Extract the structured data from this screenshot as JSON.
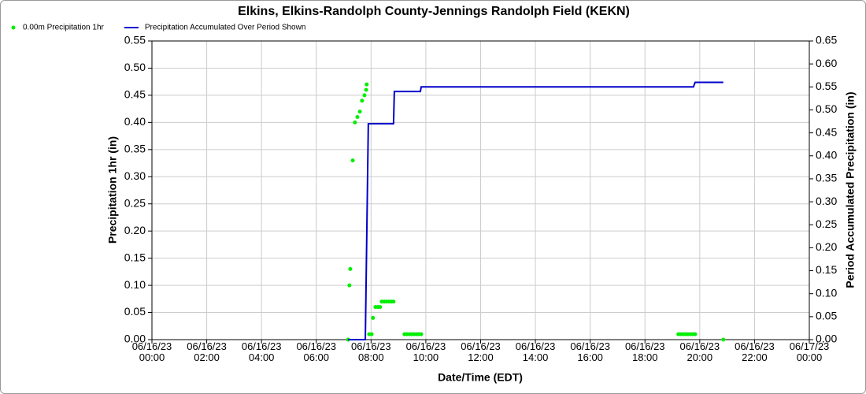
{
  "chart_data": {
    "type": "scatter",
    "title": "Elkins, Elkins-Randolph County-Jennings Randolph Field (KEKN)",
    "x_label": "Date/Time (EDT)",
    "y_label": "Precipitation 1hr (in)",
    "y2_label": "Period Accumulated Precipitation (in)",
    "legend": "top-left",
    "grid": true,
    "xlim": [
      0,
      24
    ],
    "xticks": [
      {
        "value": 0,
        "label": "06/16/23\n00:00"
      },
      {
        "value": 2,
        "label": "06/16/23\n02:00"
      },
      {
        "value": 4,
        "label": "06/16/23\n04:00"
      },
      {
        "value": 6,
        "label": "06/16/23\n06:00"
      },
      {
        "value": 8,
        "label": "06/16/23\n08:00"
      },
      {
        "value": 10,
        "label": "06/16/23\n10:00"
      },
      {
        "value": 12,
        "label": "06/16/23\n12:00"
      },
      {
        "value": 14,
        "label": "06/16/23\n14:00"
      },
      {
        "value": 16,
        "label": "06/16/23\n16:00"
      },
      {
        "value": 18,
        "label": "06/16/23\n18:00"
      },
      {
        "value": 20,
        "label": "06/16/23\n20:00"
      },
      {
        "value": 22,
        "label": "06/16/23\n22:00"
      },
      {
        "value": 24,
        "label": "06/17/23\n00:00"
      }
    ],
    "ylim": [
      0,
      0.55
    ],
    "yticks": [
      {
        "value": 0,
        "label": "0.00"
      },
      0.05,
      {
        "value": 0.1,
        "label": "0.10"
      },
      0.15,
      {
        "value": 0.2,
        "label": "0.20"
      },
      0.25,
      {
        "value": 0.3,
        "label": "0.30"
      },
      0.35,
      {
        "value": 0.4,
        "label": "0.40"
      },
      0.45,
      {
        "value": 0.5,
        "label": "0.50"
      },
      0.55
    ],
    "y2lim": [
      0,
      0.65
    ],
    "y2ticks": [
      {
        "value": 0,
        "label": "0.00"
      },
      0.05,
      {
        "value": 0.1,
        "label": "0.10"
      },
      0.15,
      {
        "value": 0.2,
        "label": "0.20"
      },
      0.25,
      {
        "value": 0.3,
        "label": "0.30"
      },
      0.35,
      {
        "value": 0.4,
        "label": "0.40"
      },
      0.45,
      {
        "value": 0.5,
        "label": "0.50"
      },
      0.55,
      {
        "value": 0.6,
        "label": "0.60"
      },
      0.65
    ],
    "series": [
      {
        "name": "0.00m Precipitation 1hr",
        "color": "#00ee00",
        "type": "scatter",
        "x": [
          7.16,
          7.21,
          7.24,
          7.33,
          7.41,
          7.5,
          7.59,
          7.67,
          7.76,
          7.82,
          7.84,
          7.93,
          8.02,
          8.07,
          8.16,
          8.25,
          8.33,
          8.39,
          8.48,
          8.56,
          8.65,
          8.74,
          8.82,
          9.22,
          9.31,
          9.4,
          9.48,
          9.57,
          9.66,
          9.74,
          9.83,
          19.22,
          19.31,
          19.4,
          19.48,
          19.57,
          19.66,
          19.74,
          19.83,
          20.86
        ],
        "values": [
          0,
          0.1,
          0.13,
          0.33,
          0.4,
          0.41,
          0.42,
          0.44,
          0.45,
          0.46,
          0.47,
          0.01,
          0.01,
          0.04,
          0.06,
          0.06,
          0.06,
          0.07,
          0.07,
          0.07,
          0.07,
          0.07,
          0.07,
          0.01,
          0.01,
          0.01,
          0.01,
          0.01,
          0.01,
          0.01,
          0.01,
          0.01,
          0.01,
          0.01,
          0.01,
          0.01,
          0.01,
          0.01,
          0.01,
          0
        ]
      },
      {
        "name": "Precipitation Accumulated Over Period Shown",
        "color": "#0000cc",
        "type": "line",
        "axis": "y2",
        "x": [
          7.16,
          7.79,
          7.9,
          8.82,
          8.85,
          9.8,
          9.83,
          19.77,
          19.83,
          20.86
        ],
        "values": [
          0,
          0,
          0.47,
          0.47,
          0.54,
          0.54,
          0.55,
          0.55,
          0.56,
          0.56
        ]
      }
    ]
  }
}
